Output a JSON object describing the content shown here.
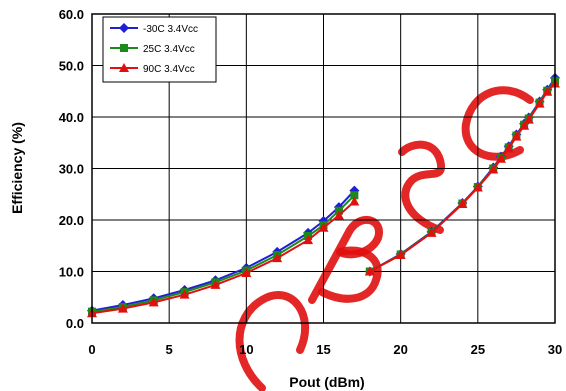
{
  "colors": {
    "series_minus30": "#1f1fd6",
    "series_25": "#1a8a1a",
    "series_90": "#e01010",
    "watermark": "#e01010"
  },
  "chart_data": {
    "type": "line",
    "title": "",
    "xlabel": "Pout (dBm)",
    "ylabel": "Efficiency (%)",
    "xlim": [
      0,
      30
    ],
    "ylim": [
      0,
      60
    ],
    "x_ticks": [
      "0",
      "5",
      "10",
      "15",
      "20",
      "25",
      "30"
    ],
    "y_ticks": [
      "0.0",
      "10.0",
      "20.0",
      "30.0",
      "40.0",
      "50.0",
      "60.0"
    ],
    "grid": true,
    "legend_position": "top-left",
    "series": [
      {
        "name": "-30C 3.4Vcc",
        "marker": "diamond",
        "segments": [
          [
            [
              0,
              2.4
            ],
            [
              2,
              3.5
            ],
            [
              4,
              4.8
            ],
            [
              6,
              6.4
            ],
            [
              8,
              8.3
            ],
            [
              10,
              10.7
            ],
            [
              12,
              13.8
            ],
            [
              14,
              17.5
            ],
            [
              15,
              19.8
            ],
            [
              16,
              22.5
            ],
            [
              17,
              25.7
            ]
          ],
          [
            [
              18,
              10.0
            ],
            [
              20,
              13.4
            ],
            [
              22,
              17.7
            ],
            [
              24,
              23.3
            ],
            [
              25,
              26.5
            ],
            [
              26,
              30.2
            ],
            [
              26.5,
              32.3
            ],
            [
              27,
              34.3
            ],
            [
              27.5,
              36.6
            ],
            [
              28,
              38.7
            ],
            [
              28.3,
              39.9
            ],
            [
              29,
              43.0
            ],
            [
              29.5,
              45.3
            ],
            [
              30,
              47.6
            ]
          ]
        ]
      },
      {
        "name": "25C 3.4Vcc",
        "marker": "square",
        "segments": [
          [
            [
              0,
              2.2
            ],
            [
              2,
              3.1
            ],
            [
              4,
              4.4
            ],
            [
              6,
              6.0
            ],
            [
              8,
              7.9
            ],
            [
              10,
              10.2
            ],
            [
              12,
              13.2
            ],
            [
              14,
              16.9
            ],
            [
              15,
              19.0
            ],
            [
              16,
              21.8
            ],
            [
              17,
              24.8
            ]
          ],
          [
            [
              18,
              10.0
            ],
            [
              20,
              13.3
            ],
            [
              22,
              17.6
            ],
            [
              24,
              23.2
            ],
            [
              25,
              26.4
            ],
            [
              26,
              30.0
            ],
            [
              26.5,
              32.1
            ],
            [
              27,
              34.1
            ],
            [
              27.5,
              36.4
            ],
            [
              28,
              38.5
            ],
            [
              28.3,
              39.7
            ],
            [
              29,
              42.8
            ],
            [
              29.5,
              45.1
            ],
            [
              30,
              47.0
            ]
          ]
        ]
      },
      {
        "name": "90C 3.4Vcc",
        "marker": "triangle",
        "segments": [
          [
            [
              0,
              1.9
            ],
            [
              2,
              2.8
            ],
            [
              4,
              4.0
            ],
            [
              6,
              5.5
            ],
            [
              8,
              7.4
            ],
            [
              10,
              9.7
            ],
            [
              12,
              12.6
            ],
            [
              14,
              16.1
            ],
            [
              15,
              18.5
            ],
            [
              16,
              20.9
            ],
            [
              17,
              23.6
            ]
          ],
          [
            [
              18,
              10.0
            ],
            [
              20,
              13.2
            ],
            [
              22,
              17.5
            ],
            [
              24,
              23.1
            ],
            [
              25,
              26.3
            ],
            [
              26,
              29.8
            ],
            [
              26.5,
              31.9
            ],
            [
              27,
              33.9
            ],
            [
              27.5,
              36.2
            ],
            [
              28,
              38.3
            ],
            [
              28.3,
              39.5
            ],
            [
              29,
              42.6
            ],
            [
              29.5,
              44.9
            ],
            [
              30,
              46.5
            ]
          ]
        ]
      }
    ]
  }
}
